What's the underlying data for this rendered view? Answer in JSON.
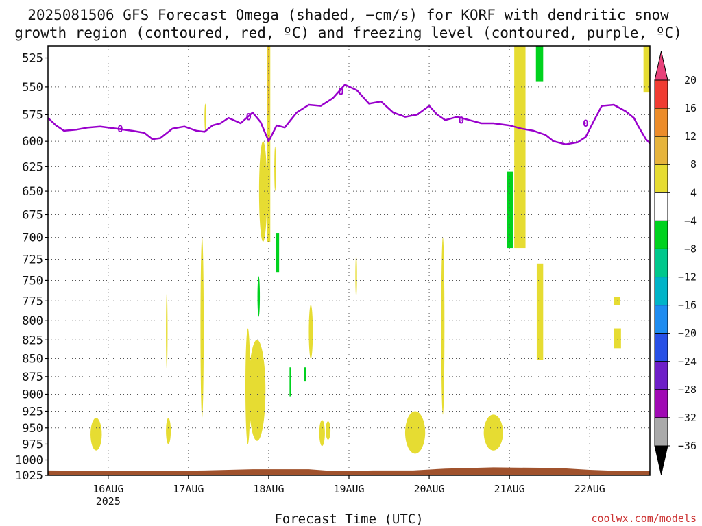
{
  "chart_data": {
    "type": "heatmap",
    "title_lines": [
      "2025081506 GFS Forecast Omega (shaded, −cm/s) for KORF with dendritic snow",
      "growth region (contoured, red, ºC) and freezing level (contoured, purple, ºC)"
    ],
    "xlabel": "Forecast Time (UTC)",
    "credit": "coolwx.com/models",
    "x_range_days": [
      15.25,
      22.75
    ],
    "x_ticks": [
      {
        "day": 16,
        "label": "16AUG",
        "sub": "2025"
      },
      {
        "day": 17,
        "label": "17AUG",
        "sub": ""
      },
      {
        "day": 18,
        "label": "18AUG",
        "sub": ""
      },
      {
        "day": 19,
        "label": "19AUG",
        "sub": ""
      },
      {
        "day": 20,
        "label": "20AUG",
        "sub": ""
      },
      {
        "day": 21,
        "label": "21AUG",
        "sub": ""
      },
      {
        "day": 22,
        "label": "22AUG",
        "sub": ""
      }
    ],
    "y_ticks": [
      525,
      550,
      575,
      600,
      625,
      650,
      675,
      700,
      725,
      750,
      775,
      800,
      825,
      850,
      875,
      900,
      925,
      950,
      975,
      1000,
      1025
    ],
    "y_scale": "log-pressure",
    "y_range_hpa": [
      1025,
      515
    ],
    "grid": true,
    "colorbar": {
      "labels": [
        "20",
        "16",
        "12",
        "8",
        "4",
        "−4",
        "−8",
        "−12",
        "−16",
        "−20",
        "−24",
        "−28",
        "−32",
        "−36"
      ],
      "colors": [
        "#e8427a",
        "#f03c32",
        "#ec8c2a",
        "#e6b43c",
        "#e6dc32",
        "#ffffff",
        "#00d21e",
        "#00c88c",
        "#00b4c8",
        "#1e8cf0",
        "#2850e6",
        "#6e1ec8",
        "#a00ab4",
        "#aaaaaa",
        "#000000"
      ]
    },
    "freezing_level": {
      "label": "0",
      "color": "#9900cc",
      "points": [
        [
          15.25,
          578
        ],
        [
          15.35,
          585
        ],
        [
          15.45,
          590
        ],
        [
          15.6,
          589
        ],
        [
          15.75,
          587
        ],
        [
          15.9,
          586
        ],
        [
          16.1,
          588
        ],
        [
          16.3,
          590
        ],
        [
          16.45,
          592
        ],
        [
          16.55,
          598
        ],
        [
          16.65,
          597
        ],
        [
          16.8,
          588
        ],
        [
          16.95,
          586
        ],
        [
          17.1,
          590
        ],
        [
          17.2,
          591
        ],
        [
          17.3,
          585
        ],
        [
          17.4,
          583
        ],
        [
          17.5,
          578
        ],
        [
          17.65,
          583
        ],
        [
          17.8,
          573
        ],
        [
          17.9,
          582
        ],
        [
          18.0,
          600
        ],
        [
          18.1,
          585
        ],
        [
          18.2,
          587
        ],
        [
          18.35,
          573
        ],
        [
          18.5,
          566
        ],
        [
          18.65,
          567
        ],
        [
          18.8,
          560
        ],
        [
          18.95,
          548
        ],
        [
          19.1,
          553
        ],
        [
          19.25,
          565
        ],
        [
          19.4,
          563
        ],
        [
          19.55,
          573
        ],
        [
          19.7,
          577
        ],
        [
          19.85,
          575
        ],
        [
          20.0,
          567
        ],
        [
          20.1,
          575
        ],
        [
          20.2,
          580
        ],
        [
          20.35,
          577
        ],
        [
          20.5,
          580
        ],
        [
          20.65,
          583
        ],
        [
          20.8,
          583
        ],
        [
          21.0,
          585
        ],
        [
          21.15,
          588
        ],
        [
          21.3,
          590
        ],
        [
          21.45,
          594
        ],
        [
          21.55,
          600
        ],
        [
          21.7,
          603
        ],
        [
          21.85,
          601
        ],
        [
          21.95,
          596
        ],
        [
          22.05,
          581
        ],
        [
          22.15,
          567
        ],
        [
          22.3,
          566
        ],
        [
          22.45,
          572
        ],
        [
          22.55,
          578
        ],
        [
          22.6,
          585
        ],
        [
          22.7,
          598
        ],
        [
          22.75,
          602
        ]
      ],
      "label_positions": [
        [
          16.15,
          588
        ],
        [
          17.75,
          577
        ],
        [
          18.9,
          554
        ],
        [
          20.4,
          580
        ],
        [
          21.95,
          583
        ]
      ]
    },
    "ground": {
      "color": "#a0522d",
      "top_hpa": [
        [
          15.25,
          1017
        ],
        [
          16.5,
          1018
        ],
        [
          17.2,
          1017
        ],
        [
          17.8,
          1015
        ],
        [
          18.5,
          1015
        ],
        [
          18.8,
          1018
        ],
        [
          19.3,
          1017
        ],
        [
          19.8,
          1017
        ],
        [
          20.2,
          1014
        ],
        [
          20.8,
          1012
        ],
        [
          21.6,
          1013
        ],
        [
          22.0,
          1016
        ],
        [
          22.4,
          1018
        ],
        [
          22.75,
          1018
        ]
      ]
    },
    "shaded_regions": [
      {
        "fill": "#e6dc32",
        "x": [
          15.78,
          15.92
        ],
        "p": [
          935,
          985
        ],
        "shape": "ellipse"
      },
      {
        "fill": "#e6dc32",
        "x": [
          16.72,
          16.78
        ],
        "p": [
          935,
          975
        ],
        "shape": "ellipse"
      },
      {
        "fill": "#e6dc32",
        "x": [
          16.72,
          16.74
        ],
        "p": [
          765,
          865
        ],
        "shape": "ellipse"
      },
      {
        "fill": "#e6dc32",
        "x": [
          17.15,
          17.19
        ],
        "p": [
          700,
          935
        ],
        "shape": "ellipse"
      },
      {
        "fill": "#e6dc32",
        "x": [
          17.2,
          17.22
        ],
        "p": [
          565,
          590
        ],
        "shape": "ellipse"
      },
      {
        "fill": "#e6dc32",
        "x": [
          17.71,
          17.77
        ],
        "p": [
          810,
          975
        ],
        "shape": "ellipse"
      },
      {
        "fill": "#e6dc32",
        "x": [
          17.75,
          17.96
        ],
        "p": [
          825,
          970
        ],
        "shape": "ellipse"
      },
      {
        "fill": "#e6dc32",
        "x": [
          17.88,
          17.98
        ],
        "p": [
          600,
          705
        ],
        "shape": "ellipse"
      },
      {
        "fill": "#e6dc32",
        "x": [
          17.98,
          18.02
        ],
        "p": [
          515,
          705
        ],
        "shape": "rect"
      },
      {
        "fill": "#e6b43c",
        "x": [
          17.99,
          18.01
        ],
        "p": [
          515,
          575
        ],
        "shape": "rect"
      },
      {
        "fill": "#e6dc32",
        "x": [
          18.07,
          18.09
        ],
        "p": [
          605,
          650
        ],
        "shape": "ellipse"
      },
      {
        "fill": "#e6dc32",
        "x": [
          18.5,
          18.55
        ],
        "p": [
          780,
          850
        ],
        "shape": "ellipse"
      },
      {
        "fill": "#e6dc32",
        "x": [
          18.63,
          18.7
        ],
        "p": [
          938,
          978
        ],
        "shape": "ellipse"
      },
      {
        "fill": "#e6dc32",
        "x": [
          18.71,
          18.77
        ],
        "p": [
          940,
          968
        ],
        "shape": "ellipse"
      },
      {
        "fill": "#e6dc32",
        "x": [
          19.08,
          19.1
        ],
        "p": [
          720,
          770
        ],
        "shape": "ellipse"
      },
      {
        "fill": "#e6dc32",
        "x": [
          19.7,
          19.95
        ],
        "p": [
          925,
          990
        ],
        "shape": "ellipse"
      },
      {
        "fill": "#e6dc32",
        "x": [
          20.15,
          20.19
        ],
        "p": [
          700,
          930
        ],
        "shape": "ellipse"
      },
      {
        "fill": "#e6dc32",
        "x": [
          20.68,
          20.92
        ],
        "p": [
          930,
          985
        ],
        "shape": "ellipse"
      },
      {
        "fill": "#e6dc32",
        "x": [
          21.06,
          21.2
        ],
        "p": [
          515,
          712
        ],
        "shape": "rect"
      },
      {
        "fill": "#e6dc32",
        "x": [
          21.34,
          21.42
        ],
        "p": [
          730,
          852
        ],
        "shape": "rect"
      },
      {
        "fill": "#e6dc32",
        "x": [
          22.3,
          22.38
        ],
        "p": [
          770,
          780
        ],
        "shape": "rect"
      },
      {
        "fill": "#e6dc32",
        "x": [
          22.3,
          22.39
        ],
        "p": [
          810,
          836
        ],
        "shape": "rect"
      },
      {
        "fill": "#e6dc32",
        "x": [
          22.67,
          22.75
        ],
        "p": [
          515,
          555
        ],
        "shape": "rect"
      },
      {
        "fill": "#00d21e",
        "x": [
          18.09,
          18.13
        ],
        "p": [
          695,
          740
        ],
        "shape": "rect"
      },
      {
        "fill": "#00d21e",
        "x": [
          17.86,
          17.89
        ],
        "p": [
          745,
          795
        ],
        "shape": "ellipse"
      },
      {
        "fill": "#00d21e",
        "x": [
          18.26,
          18.28
        ],
        "p": [
          862,
          903
        ],
        "shape": "rect"
      },
      {
        "fill": "#00d21e",
        "x": [
          18.44,
          18.47
        ],
        "p": [
          862,
          882
        ],
        "shape": "rect"
      },
      {
        "fill": "#00d21e",
        "x": [
          20.97,
          21.05
        ],
        "p": [
          630,
          712
        ],
        "shape": "rect"
      },
      {
        "fill": "#00d21e",
        "x": [
          21.33,
          21.42
        ],
        "p": [
          515,
          545
        ],
        "shape": "rect"
      }
    ]
  }
}
